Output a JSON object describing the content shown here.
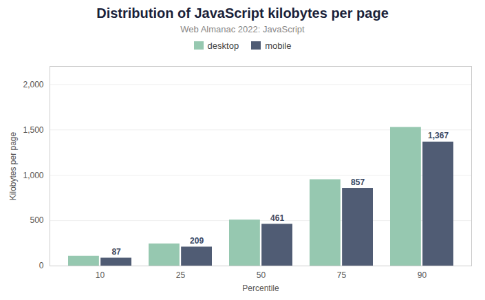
{
  "chart_data": {
    "type": "bar",
    "title": "Distribution of JavaScript kilobytes per page",
    "subtitle": "Web Almanac 2022: JavaScript",
    "x_label": "Percentile",
    "y_label": "Kilobytes per page",
    "categories": [
      "10",
      "25",
      "50",
      "75",
      "90"
    ],
    "series": [
      {
        "name": "desktop",
        "color": "#96c8b0",
        "values": [
          108,
          244,
          507,
          952,
          1528
        ]
      },
      {
        "name": "mobile",
        "color": "#505c74",
        "values": [
          87,
          209,
          461,
          857,
          1367
        ],
        "data_labels": true,
        "value_labels": [
          "87",
          "209",
          "461",
          "857",
          "1,367"
        ]
      }
    ],
    "ylim": [
      0,
      2200
    ],
    "yticks": [
      0,
      500,
      {
        "value": 1000,
        "label": "1,000"
      },
      {
        "value": 1500,
        "label": "1,500"
      },
      {
        "value": 2000,
        "label": "2,000"
      }
    ],
    "grid": true,
    "legend": "top"
  }
}
